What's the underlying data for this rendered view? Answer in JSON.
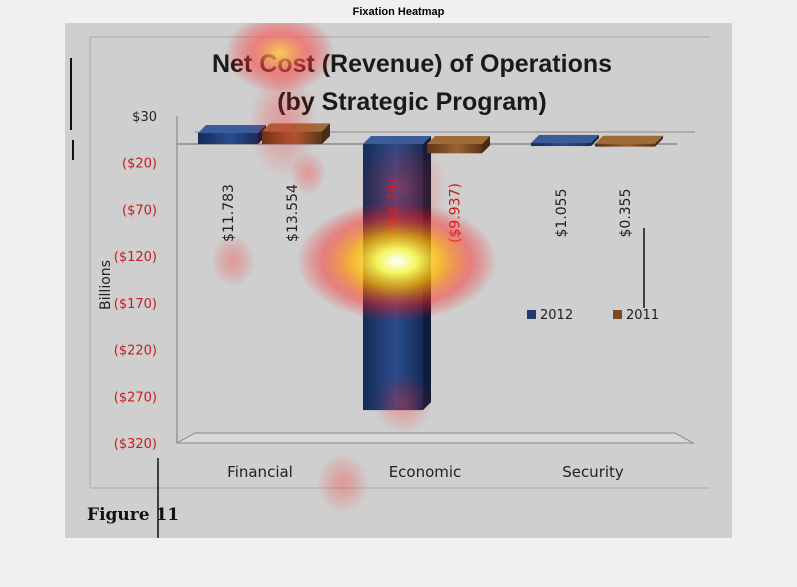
{
  "window": {
    "title": "Fixation Heatmap"
  },
  "caption": "Figure 11",
  "chart_data": {
    "type": "bar",
    "title": "Net Cost (Revenue) of Operations",
    "subtitle": "(by Strategic Program)",
    "ylabel": "Billions",
    "categories": [
      "Financial",
      "Economic",
      "Security"
    ],
    "ylim": [
      -320,
      30
    ],
    "y_ticks": [
      "$30",
      "($20)",
      "($70)",
      "($120)",
      "($170)",
      "($220)",
      "($270)",
      "($320)"
    ],
    "y_tick_values": [
      30,
      -20,
      -70,
      -120,
      -170,
      -220,
      -270,
      -320
    ],
    "series": [
      {
        "name": "2012",
        "values": [
          11.783,
          -284.79,
          1.055
        ],
        "labels": [
          "$11.783",
          "($284.79)",
          "$1.055"
        ],
        "color": "#1f3a6e"
      },
      {
        "name": "2011",
        "values": [
          13.554,
          -9.937,
          0.355
        ],
        "labels": [
          "$13.554",
          "($9.937)",
          "$0.355"
        ],
        "color": "#7a4a24"
      }
    ],
    "legend": "right",
    "grid": false,
    "colors": {
      "positive_label": "#222222",
      "negative_label": "#cc1a1a"
    }
  }
}
